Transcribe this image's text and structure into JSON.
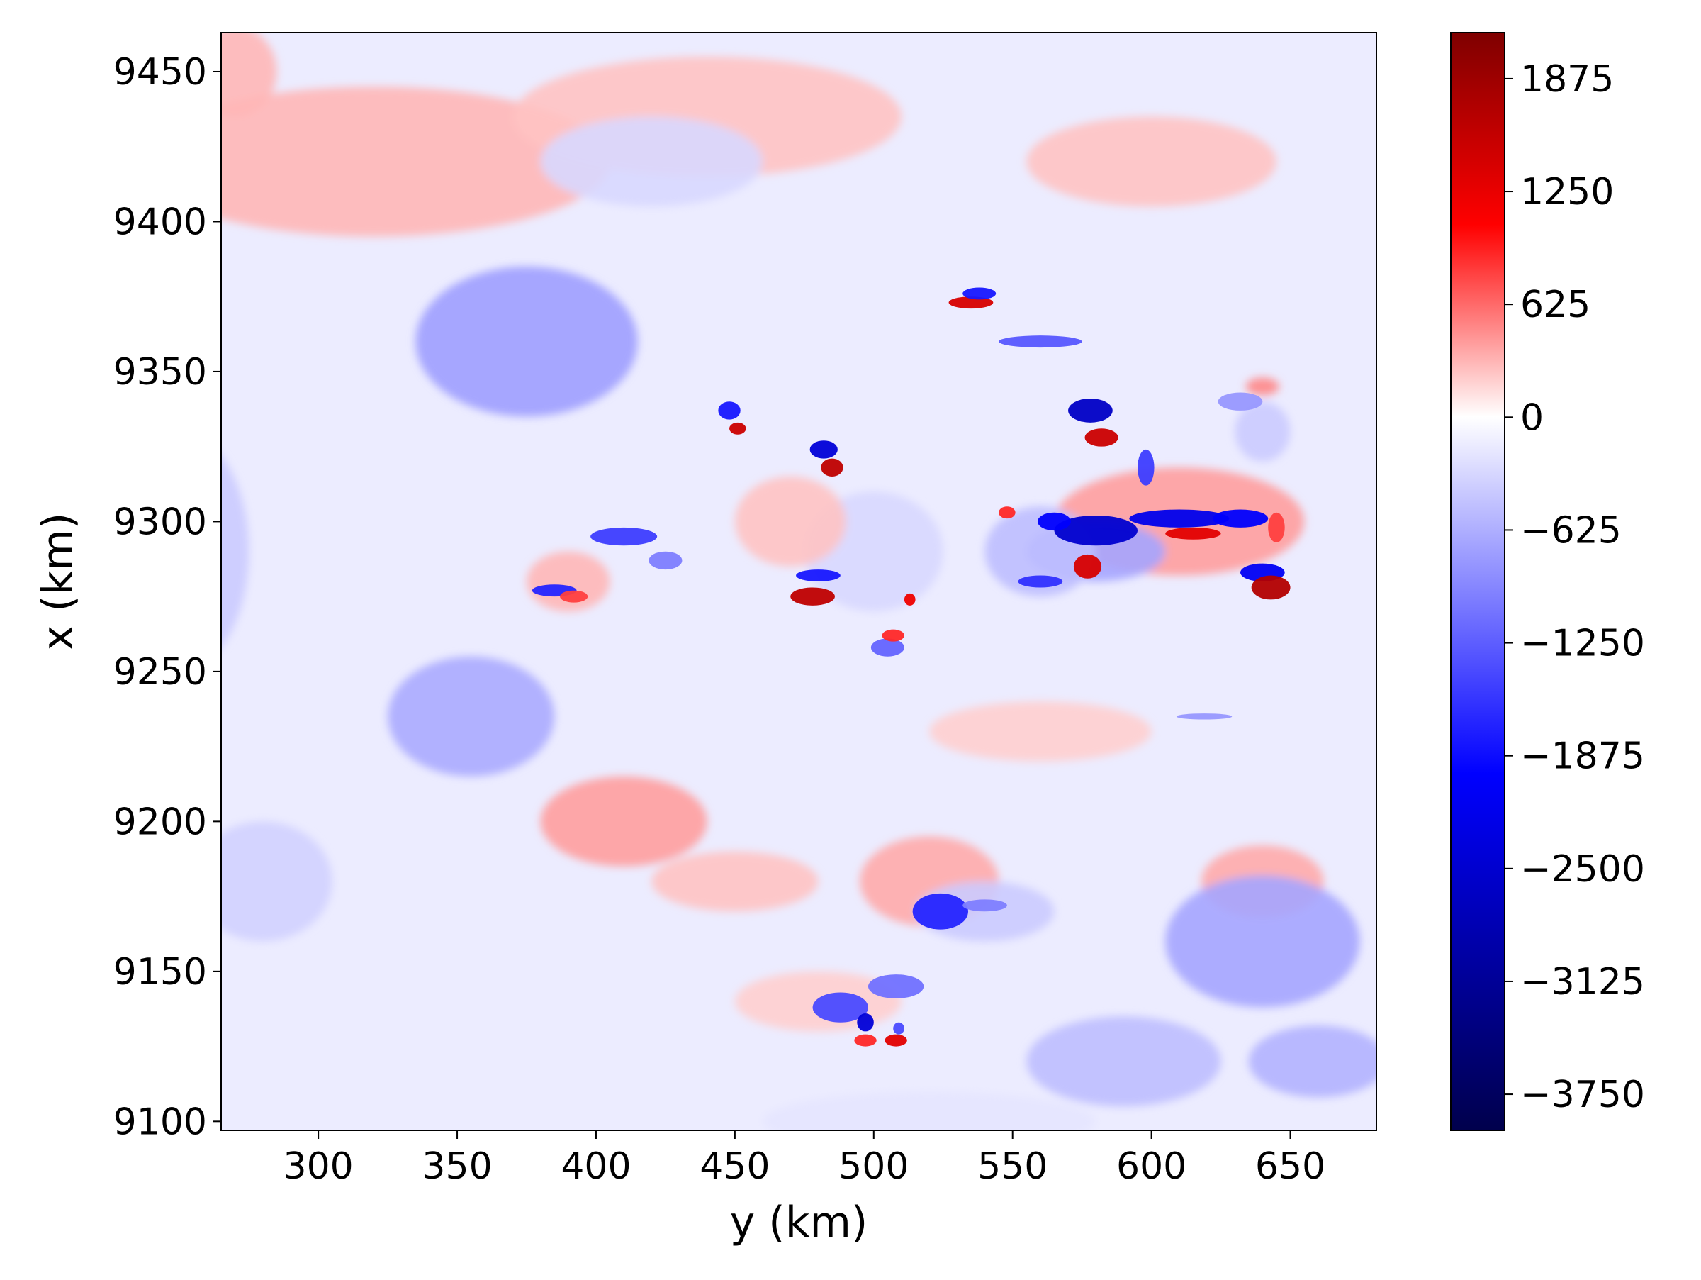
{
  "chart_data": {
    "type": "heatmap",
    "title": "",
    "xlabel": "y (km)",
    "ylabel": "x (km)",
    "xlim": [
      265,
      681
    ],
    "ylim": [
      9097,
      9463
    ],
    "xticks": [
      300,
      350,
      400,
      450,
      500,
      550,
      600,
      650
    ],
    "yticks": [
      9100,
      9150,
      9200,
      9250,
      9300,
      9350,
      9400,
      9450
    ],
    "colorbar": {
      "colormap": "seismic",
      "range": [
        -3950,
        2130
      ],
      "ticks": [
        -3750,
        -3125,
        -2500,
        -1875,
        -1250,
        -625,
        0,
        625,
        1250,
        1875
      ],
      "tick_labels": [
        "−3750",
        "−3125",
        "−2500",
        "−1875",
        "−1250",
        "−625",
        "0",
        "625",
        "1250",
        "1875"
      ],
      "colors": [
        "#00004c",
        "#0000ff",
        "#ffffff",
        "#ff0000",
        "#7f0000"
      ]
    },
    "background_value": -150,
    "features": [
      {
        "y": 375,
        "x": 9360,
        "value": -750,
        "ry": 40,
        "rx": 25
      },
      {
        "y": 355,
        "x": 9235,
        "value": -650,
        "ry": 30,
        "rx": 20
      },
      {
        "y": 320,
        "x": 9420,
        "value": 300,
        "ry": 85,
        "rx": 25
      },
      {
        "y": 440,
        "x": 9435,
        "value": 250,
        "ry": 70,
        "rx": 20
      },
      {
        "y": 600,
        "x": 9420,
        "value": 250,
        "ry": 45,
        "rx": 15
      },
      {
        "y": 410,
        "x": 9200,
        "value": 400,
        "ry": 30,
        "rx": 15
      },
      {
        "y": 520,
        "x": 9180,
        "value": 350,
        "ry": 25,
        "rx": 15
      },
      {
        "y": 640,
        "x": 9180,
        "value": 350,
        "ry": 22,
        "rx": 12
      },
      {
        "y": 450,
        "x": 9180,
        "value": 250,
        "ry": 30,
        "rx": 10
      },
      {
        "y": 560,
        "x": 9230,
        "value": 200,
        "ry": 40,
        "rx": 10
      },
      {
        "y": 610,
        "x": 9300,
        "value": 400,
        "ry": 45,
        "rx": 18
      },
      {
        "y": 580,
        "x": 9290,
        "value": -700,
        "ry": 25,
        "rx": 10
      },
      {
        "y": 560,
        "x": 9290,
        "value": -500,
        "ry": 20,
        "rx": 15
      },
      {
        "y": 640,
        "x": 9160,
        "value": -700,
        "ry": 35,
        "rx": 22
      },
      {
        "y": 660,
        "x": 9120,
        "value": -600,
        "ry": 25,
        "rx": 12
      },
      {
        "y": 590,
        "x": 9120,
        "value": -500,
        "ry": 35,
        "rx": 15
      },
      {
        "y": 250,
        "x": 9290,
        "value": -400,
        "ry": 25,
        "rx": 40
      },
      {
        "y": 420,
        "x": 9420,
        "value": -300,
        "ry": 40,
        "rx": 15
      },
      {
        "y": 540,
        "x": 9170,
        "value": -400,
        "ry": 25,
        "rx": 10
      },
      {
        "y": 280,
        "x": 9180,
        "value": -350,
        "ry": 25,
        "rx": 20
      },
      {
        "y": 480,
        "x": 9140,
        "value": 200,
        "ry": 30,
        "rx": 10
      },
      {
        "y": 640,
        "x": 9330,
        "value": -400,
        "ry": 10,
        "rx": 10
      },
      {
        "y": 500,
        "x": 9290,
        "value": -300,
        "ry": 25,
        "rx": 20
      },
      {
        "y": 470,
        "x": 9300,
        "value": 250,
        "ry": 20,
        "rx": 15
      },
      {
        "y": 390,
        "x": 9280,
        "value": 300,
        "ry": 15,
        "rx": 10
      },
      {
        "y": 270,
        "x": 9450,
        "value": 300,
        "ry": 15,
        "rx": 15
      },
      {
        "y": 520,
        "x": 9100,
        "value": -200,
        "ry": 60,
        "rx": 10
      },
      {
        "y": 482,
        "x": 9324,
        "value": -2400,
        "ry": 5,
        "rx": 3
      },
      {
        "y": 485,
        "x": 9318,
        "value": 1600,
        "ry": 4,
        "rx": 3
      },
      {
        "y": 448,
        "x": 9337,
        "value": -1800,
        "ry": 4,
        "rx": 3
      },
      {
        "y": 451,
        "x": 9331,
        "value": 1500,
        "ry": 3,
        "rx": 2
      },
      {
        "y": 535,
        "x": 9373,
        "value": 1400,
        "ry": 8,
        "rx": 2
      },
      {
        "y": 538,
        "x": 9376,
        "value": -1800,
        "ry": 6,
        "rx": 2
      },
      {
        "y": 560,
        "x": 9360,
        "value": -1300,
        "ry": 15,
        "rx": 2
      },
      {
        "y": 578,
        "x": 9337,
        "value": -2600,
        "ry": 8,
        "rx": 4
      },
      {
        "y": 582,
        "x": 9328,
        "value": 1500,
        "ry": 6,
        "rx": 3
      },
      {
        "y": 598,
        "x": 9318,
        "value": -1500,
        "ry": 3,
        "rx": 6
      },
      {
        "y": 580,
        "x": 9297,
        "value": -2500,
        "ry": 15,
        "rx": 5
      },
      {
        "y": 565,
        "x": 9300,
        "value": -2000,
        "ry": 6,
        "rx": 3
      },
      {
        "y": 610,
        "x": 9301,
        "value": -2200,
        "ry": 18,
        "rx": 3
      },
      {
        "y": 632,
        "x": 9301,
        "value": -2000,
        "ry": 10,
        "rx": 3
      },
      {
        "y": 615,
        "x": 9296,
        "value": 1300,
        "ry": 10,
        "rx": 2
      },
      {
        "y": 577,
        "x": 9285,
        "value": 1400,
        "ry": 5,
        "rx": 4
      },
      {
        "y": 560,
        "x": 9280,
        "value": -1600,
        "ry": 8,
        "rx": 2
      },
      {
        "y": 640,
        "x": 9283,
        "value": -2100,
        "ry": 8,
        "rx": 3
      },
      {
        "y": 643,
        "x": 9278,
        "value": 1700,
        "ry": 7,
        "rx": 4
      },
      {
        "y": 645,
        "x": 9298,
        "value": 800,
        "ry": 3,
        "rx": 5
      },
      {
        "y": 480,
        "x": 9282,
        "value": -1800,
        "ry": 8,
        "rx": 2
      },
      {
        "y": 478,
        "x": 9275,
        "value": 1600,
        "ry": 8,
        "rx": 3
      },
      {
        "y": 513,
        "x": 9274,
        "value": 1200,
        "ry": 2,
        "rx": 2
      },
      {
        "y": 505,
        "x": 9258,
        "value": -1200,
        "ry": 6,
        "rx": 3
      },
      {
        "y": 507,
        "x": 9262,
        "value": 900,
        "ry": 4,
        "rx": 2
      },
      {
        "y": 410,
        "x": 9295,
        "value": -1500,
        "ry": 12,
        "rx": 3
      },
      {
        "y": 385,
        "x": 9277,
        "value": -1700,
        "ry": 8,
        "rx": 2
      },
      {
        "y": 392,
        "x": 9275,
        "value": 800,
        "ry": 5,
        "rx": 2
      },
      {
        "y": 425,
        "x": 9287,
        "value": -1000,
        "ry": 6,
        "rx": 3
      },
      {
        "y": 548,
        "x": 9303,
        "value": 900,
        "ry": 3,
        "rx": 2
      },
      {
        "y": 524,
        "x": 9170,
        "value": -1700,
        "ry": 10,
        "rx": 6
      },
      {
        "y": 540,
        "x": 9172,
        "value": -1000,
        "ry": 8,
        "rx": 2
      },
      {
        "y": 488,
        "x": 9138,
        "value": -1400,
        "ry": 10,
        "rx": 5
      },
      {
        "y": 497,
        "x": 9133,
        "value": -2400,
        "ry": 3,
        "rx": 3
      },
      {
        "y": 508,
        "x": 9127,
        "value": 1300,
        "ry": 4,
        "rx": 2
      },
      {
        "y": 509,
        "x": 9131,
        "value": -1400,
        "ry": 2,
        "rx": 2
      },
      {
        "y": 497,
        "x": 9127,
        "value": 900,
        "ry": 4,
        "rx": 2
      },
      {
        "y": 508,
        "x": 9145,
        "value": -1100,
        "ry": 10,
        "rx": 4
      },
      {
        "y": 632,
        "x": 9340,
        "value": -800,
        "ry": 8,
        "rx": 3
      },
      {
        "y": 640,
        "x": 9345,
        "value": 500,
        "ry": 6,
        "rx": 3
      },
      {
        "y": 619,
        "x": 9235,
        "value": -800,
        "ry": 10,
        "rx": 1
      }
    ]
  }
}
